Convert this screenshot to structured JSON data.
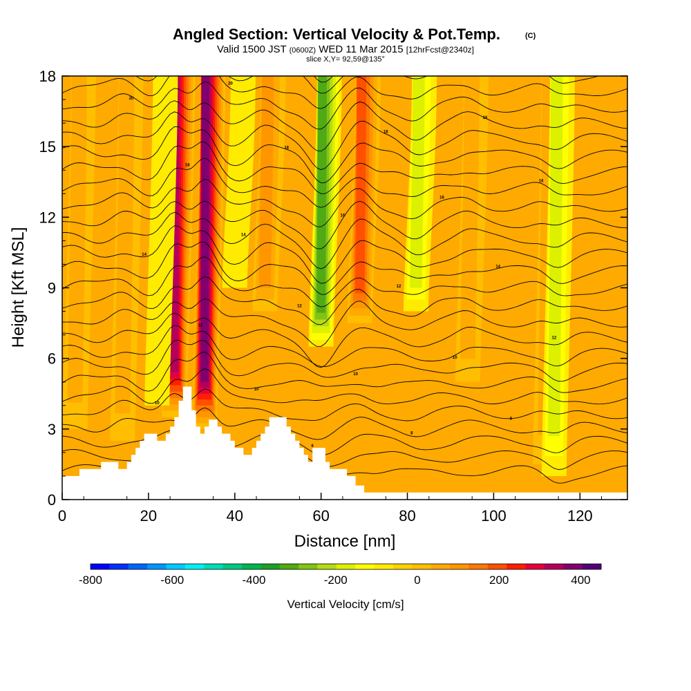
{
  "title": {
    "main": "Angled Section: Vertical Velocity & Pot.Temp.",
    "main_suffix": "(C)",
    "valid_prefix": "Valid 1500 JST",
    "valid_utc": "(0600Z)",
    "valid_date": "WED 11 Mar 2015",
    "valid_fcst": "[12hrFcst@2340z]",
    "slice": "slice X,Y= 92,59@135°"
  },
  "chart_data": {
    "type": "heatmap",
    "title": "Angled Section: Vertical Velocity & Pot.Temp. (C)",
    "xlabel": "Distance [nm]",
    "ylabel": "Height [Kft MSL]",
    "xlim": [
      0,
      131
    ],
    "ylim": [
      0,
      18
    ],
    "x_ticks": [
      "0",
      "20",
      "40",
      "60",
      "80",
      "100",
      "120"
    ],
    "y_ticks": [
      "0",
      "3",
      "6",
      "9",
      "12",
      "15",
      "18"
    ],
    "field": "Vertical Velocity",
    "units": "cm/s",
    "colorbar": {
      "label": "Vertical Velocity [cm/s]",
      "min": -800,
      "max": 450,
      "step": 50,
      "ticks": [
        "-800",
        "-600",
        "-400",
        "-200",
        "0",
        "200",
        "400"
      ],
      "colors": [
        "#0000ff",
        "#0030ff",
        "#0064ff",
        "#0096ff",
        "#00c8ff",
        "#00f0f0",
        "#00dcb4",
        "#00c882",
        "#00b450",
        "#1ea028",
        "#50aa14",
        "#82c314",
        "#b4dc14",
        "#dcf000",
        "#ffff00",
        "#ffeb00",
        "#ffd200",
        "#ffbe00",
        "#ffaa00",
        "#ff9600",
        "#ff7800",
        "#ff5000",
        "#ff1e00",
        "#e6003c",
        "#b4005a",
        "#82006e",
        "#500078"
      ]
    },
    "terrain_kft": [
      [
        0,
        1.0
      ],
      [
        4,
        1.0
      ],
      [
        4,
        1.3
      ],
      [
        9,
        1.3
      ],
      [
        9,
        1.6
      ],
      [
        13,
        1.6
      ],
      [
        13,
        1.3
      ],
      [
        15,
        1.3
      ],
      [
        15,
        1.6
      ],
      [
        16,
        1.6
      ],
      [
        16,
        1.9
      ],
      [
        17,
        1.9
      ],
      [
        17,
        2.2
      ],
      [
        18,
        2.2
      ],
      [
        18,
        2.5
      ],
      [
        19,
        2.5
      ],
      [
        19,
        2.8
      ],
      [
        22,
        2.8
      ],
      [
        22,
        2.5
      ],
      [
        24,
        2.5
      ],
      [
        24,
        2.8
      ],
      [
        25,
        2.8
      ],
      [
        25,
        3.1
      ],
      [
        26,
        3.1
      ],
      [
        26,
        3.5
      ],
      [
        27,
        3.5
      ],
      [
        27,
        4.2
      ],
      [
        28,
        4.2
      ],
      [
        28,
        4.8
      ],
      [
        30,
        4.8
      ],
      [
        30,
        3.8
      ],
      [
        31,
        3.8
      ],
      [
        31,
        3.1
      ],
      [
        32,
        3.1
      ],
      [
        32,
        2.8
      ],
      [
        33,
        2.8
      ],
      [
        33,
        3.1
      ],
      [
        34,
        3.1
      ],
      [
        34,
        3.4
      ],
      [
        36,
        3.4
      ],
      [
        36,
        3.1
      ],
      [
        37,
        3.1
      ],
      [
        37,
        2.8
      ],
      [
        39,
        2.8
      ],
      [
        39,
        2.5
      ],
      [
        40,
        2.5
      ],
      [
        40,
        2.2
      ],
      [
        42,
        2.2
      ],
      [
        42,
        1.9
      ],
      [
        44,
        1.9
      ],
      [
        44,
        2.2
      ],
      [
        45,
        2.2
      ],
      [
        45,
        2.5
      ],
      [
        46,
        2.5
      ],
      [
        46,
        2.8
      ],
      [
        47,
        2.8
      ],
      [
        47,
        3.1
      ],
      [
        48,
        3.1
      ],
      [
        48,
        3.5
      ],
      [
        52,
        3.5
      ],
      [
        52,
        3.1
      ],
      [
        53,
        3.1
      ],
      [
        53,
        2.8
      ],
      [
        54,
        2.8
      ],
      [
        54,
        2.5
      ],
      [
        55,
        2.5
      ],
      [
        55,
        2.2
      ],
      [
        56,
        2.2
      ],
      [
        56,
        1.9
      ],
      [
        57,
        1.9
      ],
      [
        57,
        1.6
      ],
      [
        58,
        1.6
      ],
      [
        58,
        2.2
      ],
      [
        61,
        2.2
      ],
      [
        61,
        1.6
      ],
      [
        62,
        1.6
      ],
      [
        62,
        1.3
      ],
      [
        66,
        1.3
      ],
      [
        66,
        1.0
      ],
      [
        68,
        1.0
      ],
      [
        68,
        0.6
      ],
      [
        70,
        0.6
      ],
      [
        70,
        0.3
      ],
      [
        131,
        0.3
      ]
    ],
    "updrafts": [
      {
        "x": 26,
        "base": 3.5,
        "peak": 420
      },
      {
        "x": 33,
        "base": 3.0,
        "peak": 430
      },
      {
        "x": 69,
        "base": 7.5,
        "peak": 260
      },
      {
        "x": 47,
        "base": 8.0,
        "peak": 150
      },
      {
        "x": 14,
        "base": 2.5,
        "peak": 120
      },
      {
        "x": 112,
        "base": 1.5,
        "peak": 110
      },
      {
        "x": 94,
        "base": 5.0,
        "peak": 90
      },
      {
        "x": 3,
        "base": 3.0,
        "peak": 80
      }
    ],
    "downdrafts": [
      {
        "x": 60,
        "base": 6.5,
        "peak": -320
      },
      {
        "x": 82,
        "base": 8.0,
        "peak": -150
      },
      {
        "x": 114,
        "base": 1.0,
        "peak": -140
      },
      {
        "x": 40,
        "base": 9.0,
        "peak": -60
      },
      {
        "x": 22,
        "base": 4.0,
        "peak": -60
      }
    ],
    "theta_contour_labels": [
      "4",
      "4",
      "6",
      "8",
      "8",
      "10",
      "10",
      "10",
      "10",
      "12",
      "12",
      "12",
      "12",
      "14",
      "14",
      "14",
      "16",
      "16",
      "16",
      "18",
      "18",
      "18",
      "18",
      "20",
      "20",
      "20",
      "20"
    ]
  }
}
